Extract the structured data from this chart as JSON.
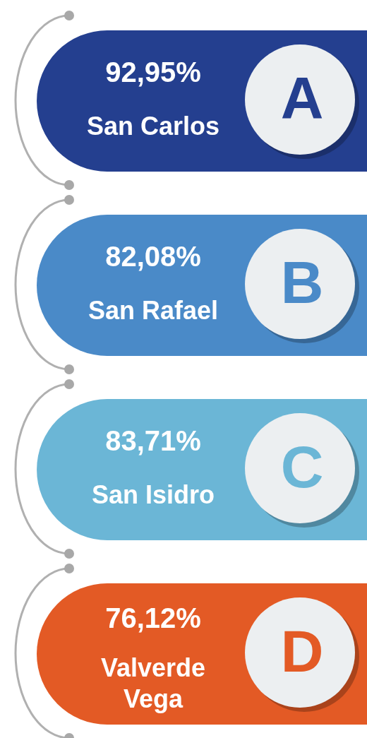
{
  "chart_data": {
    "type": "other",
    "categories": [
      "San Carlos",
      "San Rafael",
      "San Isidro",
      "Valverde Vega"
    ],
    "values": [
      92.95,
      82.08,
      83.71,
      76.12
    ],
    "value_labels": [
      "92,95%",
      "82,08%",
      "83,71%",
      "76,12%"
    ],
    "colors": [
      "#243f8f",
      "#4a8ac8",
      "#6bb6d6",
      "#e35a25"
    ],
    "annotations": [
      "A",
      "B",
      "C",
      "D"
    ]
  }
}
